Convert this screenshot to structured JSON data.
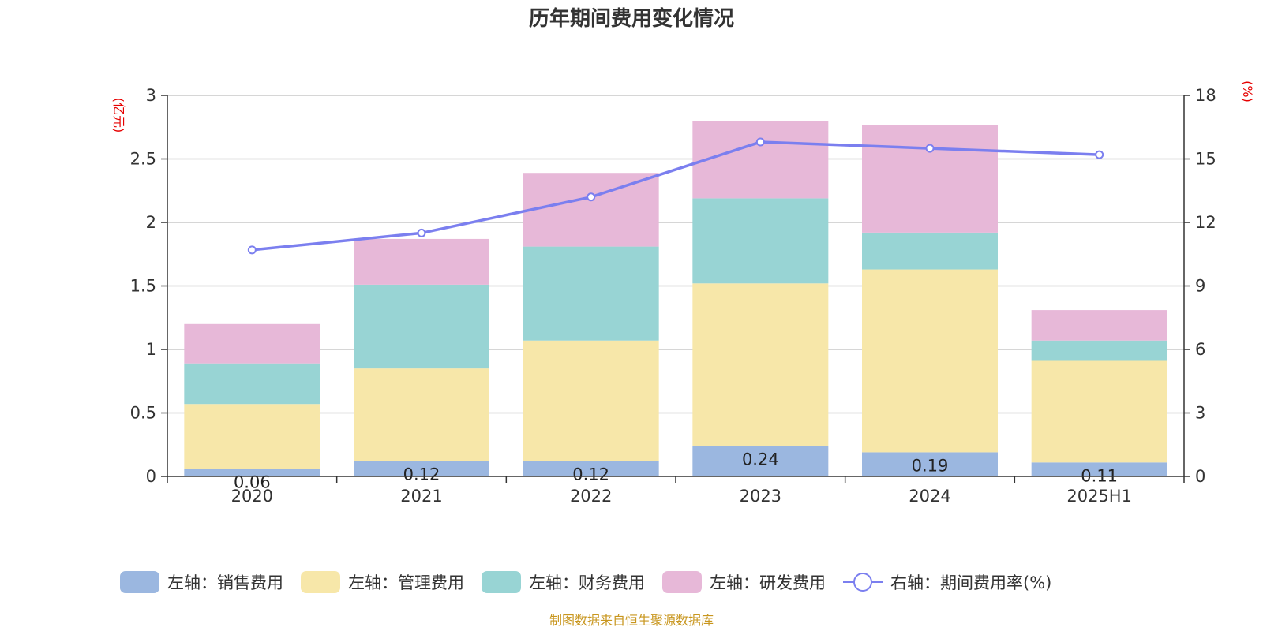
{
  "chart_data": {
    "type": "bar",
    "stacked": true,
    "title": "历年期间费用变化情况",
    "categories": [
      "2020",
      "2021",
      "2022",
      "2023",
      "2024",
      "2025H1"
    ],
    "left_axis": {
      "unit": "(亿元)",
      "ylim": [
        0,
        3
      ],
      "ticks": [
        "0",
        "0.5",
        "1",
        "1.5",
        "2",
        "2.5",
        "3"
      ]
    },
    "right_axis": {
      "unit": "(%)",
      "ylim": [
        0,
        18
      ],
      "ticks": [
        "0",
        "3",
        "6",
        "9",
        "12",
        "15",
        "18"
      ]
    },
    "grid": true,
    "legend_position": "bottom",
    "series": [
      {
        "name": "左轴：销售费用",
        "axis": "left",
        "type": "bar",
        "color": "#9bb7e0",
        "values": [
          0.06,
          0.12,
          0.12,
          0.24,
          0.19,
          0.11
        ],
        "labels": [
          "0.06",
          "0.12",
          "0.12",
          "0.24",
          "0.19",
          "0.11"
        ]
      },
      {
        "name": "左轴：管理费用",
        "axis": "left",
        "type": "bar",
        "color": "#f7e7a9",
        "values": [
          0.51,
          0.73,
          0.95,
          1.28,
          1.44,
          0.8
        ]
      },
      {
        "name": "左轴：财务费用",
        "axis": "left",
        "type": "bar",
        "color": "#98d4d4",
        "values": [
          0.32,
          0.66,
          0.74,
          0.67,
          0.29,
          0.16
        ]
      },
      {
        "name": "左轴：研发费用",
        "axis": "left",
        "type": "bar",
        "color": "#e7b8d8",
        "values": [
          0.31,
          0.36,
          0.58,
          0.61,
          0.85,
          0.24
        ]
      },
      {
        "name": "右轴：期间费用率(%)",
        "axis": "right",
        "type": "line",
        "color": "#7b7fef",
        "values": [
          10.7,
          11.5,
          13.2,
          15.8,
          15.5,
          15.2
        ]
      }
    ],
    "source": "制图数据来自恒生聚源数据库"
  }
}
